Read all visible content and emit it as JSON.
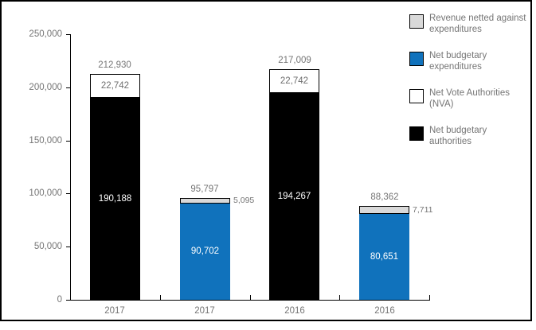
{
  "chart_data": {
    "type": "bar",
    "stacked": true,
    "title": "",
    "xlabel": "",
    "ylabel": "",
    "grid": false,
    "ylim": [
      0,
      250000
    ],
    "yticks": [
      {
        "value": 250000,
        "label": "250,000"
      },
      {
        "value": 200000,
        "label": "200,000"
      },
      {
        "value": 150000,
        "label": "150,000"
      },
      {
        "value": 100000,
        "label": "100,000"
      },
      {
        "value": 50000,
        "label": "50,000"
      },
      {
        "value": 0,
        "label": "0"
      }
    ],
    "categories": [
      "2017",
      "2017",
      "2016",
      "2016"
    ],
    "bars": [
      {
        "category": "2017",
        "total": 212930,
        "total_label": "212,930",
        "segments": [
          {
            "name": "Net budgetary authorities",
            "value": 190188,
            "label": "190,188",
            "color": "#000000",
            "label_color": "#ffffff",
            "label_position": "inside",
            "border": false
          },
          {
            "name": "Net Vote Authorities (NVA)",
            "value": 22742,
            "label": "22,742",
            "color": "#ffffff",
            "label_color": "#6e6e6e",
            "label_position": "inside",
            "border": true
          }
        ]
      },
      {
        "category": "2017",
        "total": 95797,
        "total_label": "95,797",
        "segments": [
          {
            "name": "Net budgetary expenditures",
            "value": 90702,
            "label": "90,702",
            "color": "#1072bc",
            "label_color": "#ffffff",
            "label_position": "inside",
            "border": false
          },
          {
            "name": "Revenue netted against expenditures",
            "value": 5095,
            "label": "5,095",
            "color": "#d9d9d9",
            "label_color": "#6e6e6e",
            "label_position": "right",
            "border": true
          }
        ]
      },
      {
        "category": "2016",
        "total": 217009,
        "total_label": "217,009",
        "segments": [
          {
            "name": "Net budgetary authorities",
            "value": 194267,
            "label": "194,267",
            "color": "#000000",
            "label_color": "#ffffff",
            "label_position": "inside",
            "border": false
          },
          {
            "name": "Net Vote Authorities (NVA)",
            "value": 22742,
            "label": "22,742",
            "color": "#ffffff",
            "label_color": "#6e6e6e",
            "label_position": "inside",
            "border": true
          }
        ]
      },
      {
        "category": "2016",
        "total": 88362,
        "total_label": "88,362",
        "segments": [
          {
            "name": "Net budgetary expenditures",
            "value": 80651,
            "label": "80,651",
            "color": "#1072bc",
            "label_color": "#ffffff",
            "label_position": "inside",
            "border": false
          },
          {
            "name": "Revenue netted against expenditures",
            "value": 7711,
            "label": "7,711",
            "color": "#d9d9d9",
            "label_color": "#6e6e6e",
            "label_position": "right",
            "border": true
          }
        ]
      }
    ],
    "legend": {
      "position": "top-right",
      "items": [
        {
          "label": "Revenue netted against expenditures",
          "color": "#d9d9d9"
        },
        {
          "label": "Net budgetary expenditures",
          "color": "#1072bc"
        },
        {
          "label": "Net Vote Authorities (NVA)",
          "color": "#ffffff"
        },
        {
          "label": "Net budgetary authorities",
          "color": "#000000"
        }
      ]
    }
  },
  "colors": {
    "axis": "#000000",
    "text_gray": "#757575",
    "background": "#ffffff",
    "frame_border": "#000000"
  }
}
